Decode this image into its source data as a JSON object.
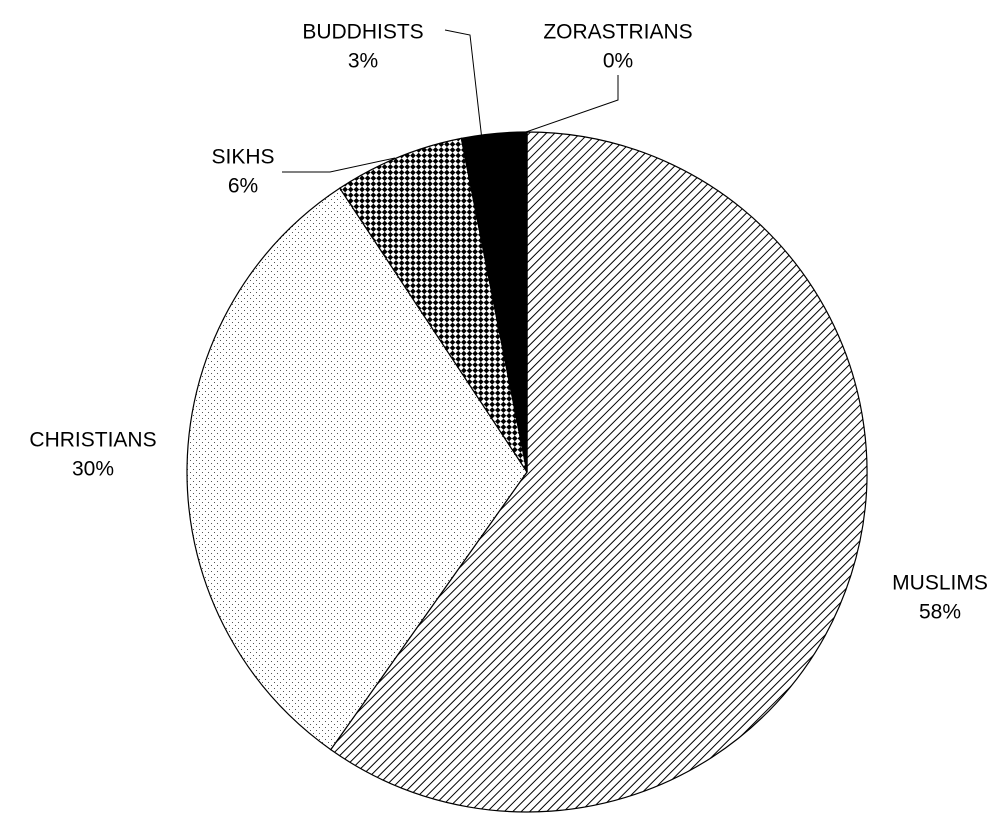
{
  "chart_data": {
    "type": "pie",
    "categories": [
      "MUSLIMS",
      "CHRISTIANS",
      "SIKHS",
      "BUDDHISTS",
      "ZORASTRIANS"
    ],
    "values": [
      58,
      30,
      6,
      3,
      0
    ],
    "value_labels": [
      "58%",
      "30%",
      "6%",
      "3%",
      "0%"
    ],
    "patterns": [
      "diagonal",
      "dots",
      "checker",
      "solid",
      "none"
    ],
    "start_angle": 0,
    "direction": "clockwise"
  }
}
